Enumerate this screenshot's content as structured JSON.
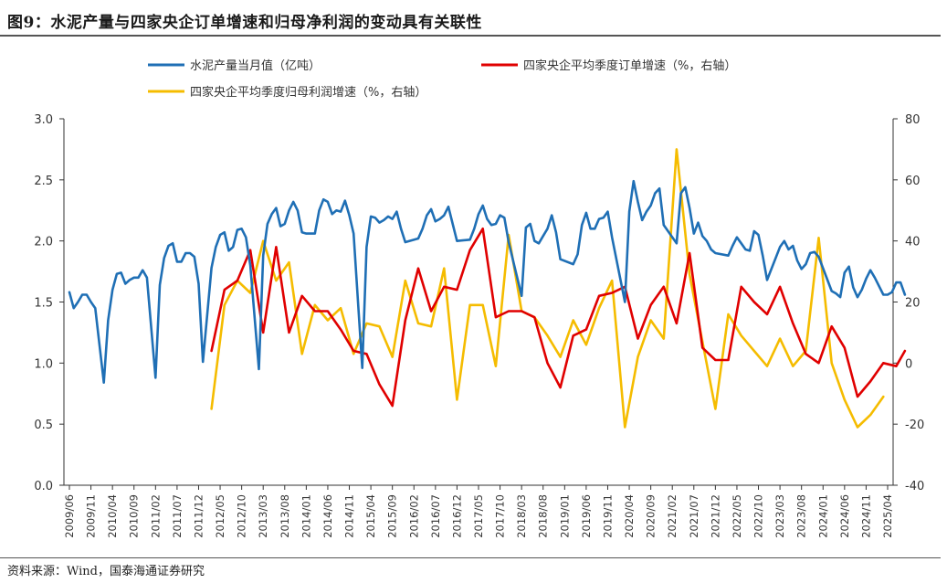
{
  "header": {
    "title": "图9：水泥产量与四家央企订单增速和归母净利润的变动具有关联性"
  },
  "footer": {
    "source": "资料来源：Wind，国泰海通证券研究"
  },
  "chart_data": {
    "type": "line",
    "legend_position": "top",
    "grid": false,
    "left_axis": {
      "range": [
        0,
        3
      ],
      "ticks": [
        "0.0",
        "0.5",
        "1.0",
        "1.5",
        "2.0",
        "2.5",
        "3.0"
      ],
      "tick_values": [
        0,
        0.5,
        1,
        1.5,
        2,
        2.5,
        3
      ]
    },
    "right_axis": {
      "range": [
        -40,
        80
      ],
      "ticks": [
        "-40",
        "-20",
        "0",
        "20",
        "40",
        "60",
        "80"
      ],
      "tick_values": [
        -40,
        -20,
        0,
        20,
        40,
        60,
        80
      ]
    },
    "x_ticks": [
      "2009/06",
      "2009/11",
      "2010/04",
      "2010/09",
      "2011/02",
      "2011/07",
      "2011/12",
      "2012/05",
      "2012/10",
      "2013/03",
      "2013/08",
      "2014/01",
      "2014/06",
      "2014/11",
      "2015/04",
      "2015/09",
      "2016/02",
      "2016/07",
      "2016/12",
      "2017/05",
      "2017/10",
      "2018/03",
      "2018/08",
      "2019/01",
      "2019/06",
      "2019/11",
      "2020/04",
      "2020/09",
      "2021/02",
      "2021/07",
      "2021/12",
      "2022/05",
      "2022/10",
      "2023/03",
      "2023/08",
      "2024/01",
      "2024/06",
      "2024/11",
      "2025/04"
    ],
    "series": [
      {
        "name": "水泥产量当月值（亿吨）",
        "axis": "left",
        "color": "#1f6fb5",
        "points": [
          [
            "2009/06",
            1.58
          ],
          [
            "2009/07",
            1.45
          ],
          [
            "2009/08",
            1.5
          ],
          [
            "2009/09",
            1.56
          ],
          [
            "2009/10",
            1.56
          ],
          [
            "2009/11",
            1.5
          ],
          [
            "2009/12",
            1.45
          ],
          [
            "2010/02",
            0.84
          ],
          [
            "2010/03",
            1.35
          ],
          [
            "2010/04",
            1.6
          ],
          [
            "2010/05",
            1.73
          ],
          [
            "2010/06",
            1.74
          ],
          [
            "2010/07",
            1.65
          ],
          [
            "2010/08",
            1.68
          ],
          [
            "2010/09",
            1.7
          ],
          [
            "2010/10",
            1.7
          ],
          [
            "2010/11",
            1.76
          ],
          [
            "2010/12",
            1.7
          ],
          [
            "2011/02",
            0.88
          ],
          [
            "2011/03",
            1.64
          ],
          [
            "2011/04",
            1.86
          ],
          [
            "2011/05",
            1.96
          ],
          [
            "2011/06",
            1.98
          ],
          [
            "2011/07",
            1.83
          ],
          [
            "2011/08",
            1.83
          ],
          [
            "2011/09",
            1.9
          ],
          [
            "2011/10",
            1.9
          ],
          [
            "2011/11",
            1.87
          ],
          [
            "2011/12",
            1.65
          ],
          [
            "2012/01",
            1.01
          ],
          [
            "2012/03",
            1.78
          ],
          [
            "2012/04",
            1.95
          ],
          [
            "2012/05",
            2.05
          ],
          [
            "2012/06",
            2.07
          ],
          [
            "2012/07",
            1.92
          ],
          [
            "2012/08",
            1.95
          ],
          [
            "2012/09",
            2.09
          ],
          [
            "2012/10",
            2.1
          ],
          [
            "2012/11",
            2.03
          ],
          [
            "2012/12",
            1.8
          ],
          [
            "2013/02",
            0.95
          ],
          [
            "2013/03",
            1.88
          ],
          [
            "2013/04",
            2.14
          ],
          [
            "2013/05",
            2.22
          ],
          [
            "2013/06",
            2.27
          ],
          [
            "2013/07",
            2.12
          ],
          [
            "2013/08",
            2.14
          ],
          [
            "2013/09",
            2.25
          ],
          [
            "2013/10",
            2.32
          ],
          [
            "2013/11",
            2.25
          ],
          [
            "2013/12",
            2.07
          ],
          [
            "2014/01",
            2.06
          ],
          [
            "2014/03",
            2.06
          ],
          [
            "2014/04",
            2.25
          ],
          [
            "2014/05",
            2.34
          ],
          [
            "2014/06",
            2.32
          ],
          [
            "2014/07",
            2.22
          ],
          [
            "2014/08",
            2.25
          ],
          [
            "2014/09",
            2.24
          ],
          [
            "2014/10",
            2.33
          ],
          [
            "2014/11",
            2.21
          ],
          [
            "2014/12",
            2.06
          ],
          [
            "2015/02",
            0.96
          ],
          [
            "2015/03",
            1.95
          ],
          [
            "2015/04",
            2.2
          ],
          [
            "2015/05",
            2.19
          ],
          [
            "2015/06",
            2.15
          ],
          [
            "2015/07",
            2.17
          ],
          [
            "2015/08",
            2.2
          ],
          [
            "2015/09",
            2.18
          ],
          [
            "2015/10",
            2.24
          ],
          [
            "2015/11",
            2.1
          ],
          [
            "2015/12",
            1.99
          ],
          [
            "2016/03",
            2.02
          ],
          [
            "2016/04",
            2.1
          ],
          [
            "2016/05",
            2.21
          ],
          [
            "2016/06",
            2.26
          ],
          [
            "2016/07",
            2.16
          ],
          [
            "2016/08",
            2.18
          ],
          [
            "2016/09",
            2.21
          ],
          [
            "2016/10",
            2.28
          ],
          [
            "2016/11",
            2.14
          ],
          [
            "2016/12",
            2.0
          ],
          [
            "2017/03",
            2.01
          ],
          [
            "2017/04",
            2.1
          ],
          [
            "2017/05",
            2.22
          ],
          [
            "2017/06",
            2.29
          ],
          [
            "2017/07",
            2.18
          ],
          [
            "2017/08",
            2.13
          ],
          [
            "2017/09",
            2.14
          ],
          [
            "2017/10",
            2.21
          ],
          [
            "2017/11",
            2.19
          ],
          [
            "2017/12",
            1.99
          ],
          [
            "2018/03",
            1.55
          ],
          [
            "2018/04",
            2.11
          ],
          [
            "2018/05",
            2.14
          ],
          [
            "2018/06",
            2.0
          ],
          [
            "2018/07",
            1.98
          ],
          [
            "2018/08",
            2.04
          ],
          [
            "2018/09",
            2.1
          ],
          [
            "2018/10",
            2.21
          ],
          [
            "2018/11",
            2.07
          ],
          [
            "2018/12",
            1.85
          ],
          [
            "2019/03",
            1.81
          ],
          [
            "2019/04",
            1.89
          ],
          [
            "2019/05",
            2.13
          ],
          [
            "2019/06",
            2.23
          ],
          [
            "2019/07",
            2.1
          ],
          [
            "2019/08",
            2.1
          ],
          [
            "2019/09",
            2.18
          ],
          [
            "2019/10",
            2.19
          ],
          [
            "2019/11",
            2.24
          ],
          [
            "2019/12",
            2.03
          ],
          [
            "2020/03",
            1.5
          ],
          [
            "2020/04",
            2.24
          ],
          [
            "2020/05",
            2.49
          ],
          [
            "2020/06",
            2.32
          ],
          [
            "2020/07",
            2.17
          ],
          [
            "2020/08",
            2.24
          ],
          [
            "2020/09",
            2.29
          ],
          [
            "2020/10",
            2.39
          ],
          [
            "2020/11",
            2.43
          ],
          [
            "2020/12",
            2.13
          ],
          [
            "2021/03",
            1.98
          ],
          [
            "2021/04",
            2.39
          ],
          [
            "2021/05",
            2.44
          ],
          [
            "2021/06",
            2.27
          ],
          [
            "2021/07",
            2.06
          ],
          [
            "2021/08",
            2.15
          ],
          [
            "2021/09",
            2.04
          ],
          [
            "2021/10",
            2.0
          ],
          [
            "2021/11",
            1.93
          ],
          [
            "2021/12",
            1.9
          ],
          [
            "2022/03",
            1.88
          ],
          [
            "2022/04",
            1.96
          ],
          [
            "2022/05",
            2.03
          ],
          [
            "2022/06",
            1.98
          ],
          [
            "2022/07",
            1.93
          ],
          [
            "2022/08",
            1.92
          ],
          [
            "2022/09",
            2.08
          ],
          [
            "2022/10",
            2.05
          ],
          [
            "2022/11",
            1.88
          ],
          [
            "2022/12",
            1.68
          ],
          [
            "2023/03",
            1.95
          ],
          [
            "2023/04",
            2.0
          ],
          [
            "2023/05",
            1.93
          ],
          [
            "2023/06",
            1.96
          ],
          [
            "2023/07",
            1.84
          ],
          [
            "2023/08",
            1.77
          ],
          [
            "2023/09",
            1.81
          ],
          [
            "2023/10",
            1.9
          ],
          [
            "2023/11",
            1.91
          ],
          [
            "2023/12",
            1.87
          ],
          [
            "2024/03",
            1.59
          ],
          [
            "2024/04",
            1.57
          ],
          [
            "2024/05",
            1.54
          ],
          [
            "2024/06",
            1.74
          ],
          [
            "2024/07",
            1.79
          ],
          [
            "2024/08",
            1.62
          ],
          [
            "2024/09",
            1.54
          ],
          [
            "2024/10",
            1.6
          ],
          [
            "2024/11",
            1.69
          ],
          [
            "2024/12",
            1.76
          ],
          [
            "2025/01",
            1.7
          ],
          [
            "2025/03",
            1.56
          ],
          [
            "2025/04",
            1.56
          ],
          [
            "2025/05",
            1.58
          ],
          [
            "2025/06",
            1.66
          ],
          [
            "2025/07",
            1.66
          ],
          [
            "2025/08",
            1.56
          ]
        ]
      },
      {
        "name": "四家央企平均季度订单增速（%，右轴）",
        "axis": "right",
        "color": "#e00000",
        "points": [
          [
            "2012/03",
            4
          ],
          [
            "2012/06",
            24
          ],
          [
            "2012/09",
            27
          ],
          [
            "2012/12",
            37
          ],
          [
            "2013/03",
            10
          ],
          [
            "2013/06",
            38
          ],
          [
            "2013/09",
            10
          ],
          [
            "2013/12",
            22
          ],
          [
            "2014/03",
            17
          ],
          [
            "2014/06",
            17
          ],
          [
            "2014/09",
            11
          ],
          [
            "2014/12",
            4
          ],
          [
            "2015/03",
            3
          ],
          [
            "2015/06",
            -7
          ],
          [
            "2015/09",
            -14
          ],
          [
            "2015/12",
            14
          ],
          [
            "2016/03",
            31
          ],
          [
            "2016/06",
            17
          ],
          [
            "2016/09",
            25
          ],
          [
            "2016/12",
            24
          ],
          [
            "2017/03",
            37
          ],
          [
            "2017/06",
            44
          ],
          [
            "2017/09",
            15
          ],
          [
            "2017/12",
            17
          ],
          [
            "2018/03",
            17
          ],
          [
            "2018/06",
            15
          ],
          [
            "2018/09",
            0
          ],
          [
            "2018/12",
            -8
          ],
          [
            "2019/03",
            9
          ],
          [
            "2019/06",
            11
          ],
          [
            "2019/09",
            22
          ],
          [
            "2019/12",
            23
          ],
          [
            "2020/03",
            25
          ],
          [
            "2020/06",
            8
          ],
          [
            "2020/09",
            19
          ],
          [
            "2020/12",
            25
          ],
          [
            "2021/03",
            13
          ],
          [
            "2021/06",
            36
          ],
          [
            "2021/09",
            5
          ],
          [
            "2021/12",
            1
          ],
          [
            "2022/03",
            1
          ],
          [
            "2022/06",
            25
          ],
          [
            "2022/09",
            20
          ],
          [
            "2022/12",
            16
          ],
          [
            "2023/03",
            25
          ],
          [
            "2023/06",
            13
          ],
          [
            "2023/09",
            3
          ],
          [
            "2023/12",
            0
          ],
          [
            "2024/03",
            12
          ],
          [
            "2024/06",
            5
          ],
          [
            "2024/09",
            -11
          ],
          [
            "2024/12",
            -6
          ],
          [
            "2025/03",
            0
          ],
          [
            "2025/06",
            -1
          ],
          [
            "2025/08",
            4
          ]
        ]
      },
      {
        "name": "四家央企平均季度归母利润增速（%，右轴）",
        "axis": "right",
        "color": "#f5bc00",
        "points": [
          [
            "2012/03",
            -15
          ],
          [
            "2012/06",
            19
          ],
          [
            "2012/09",
            27
          ],
          [
            "2012/12",
            23
          ],
          [
            "2013/03",
            40
          ],
          [
            "2013/06",
            27
          ],
          [
            "2013/09",
            33
          ],
          [
            "2013/12",
            3
          ],
          [
            "2014/03",
            19
          ],
          [
            "2014/06",
            14
          ],
          [
            "2014/09",
            18
          ],
          [
            "2014/12",
            3
          ],
          [
            "2015/03",
            13
          ],
          [
            "2015/06",
            12
          ],
          [
            "2015/09",
            2
          ],
          [
            "2015/12",
            27
          ],
          [
            "2016/03",
            13
          ],
          [
            "2016/06",
            12
          ],
          [
            "2016/09",
            31
          ],
          [
            "2016/12",
            -12
          ],
          [
            "2017/03",
            19
          ],
          [
            "2017/06",
            19
          ],
          [
            "2017/09",
            -1
          ],
          [
            "2017/12",
            42
          ],
          [
            "2018/03",
            17
          ],
          [
            "2018/06",
            15
          ],
          [
            "2018/09",
            9
          ],
          [
            "2018/12",
            2
          ],
          [
            "2019/03",
            14
          ],
          [
            "2019/06",
            6
          ],
          [
            "2019/09",
            18
          ],
          [
            "2019/12",
            27
          ],
          [
            "2020/03",
            -21
          ],
          [
            "2020/06",
            2
          ],
          [
            "2020/09",
            14
          ],
          [
            "2020/12",
            8
          ],
          [
            "2021/03",
            70
          ],
          [
            "2021/06",
            29
          ],
          [
            "2021/09",
            7
          ],
          [
            "2021/12",
            -15
          ],
          [
            "2022/03",
            16
          ],
          [
            "2022/06",
            9
          ],
          [
            "2022/09",
            4
          ],
          [
            "2022/12",
            -1
          ],
          [
            "2023/03",
            8
          ],
          [
            "2023/06",
            -1
          ],
          [
            "2023/09",
            4
          ],
          [
            "2023/12",
            41
          ],
          [
            "2024/03",
            0
          ],
          [
            "2024/06",
            -12
          ],
          [
            "2024/09",
            -21
          ],
          [
            "2024/12",
            -17
          ],
          [
            "2025/03",
            -11
          ]
        ]
      }
    ]
  }
}
